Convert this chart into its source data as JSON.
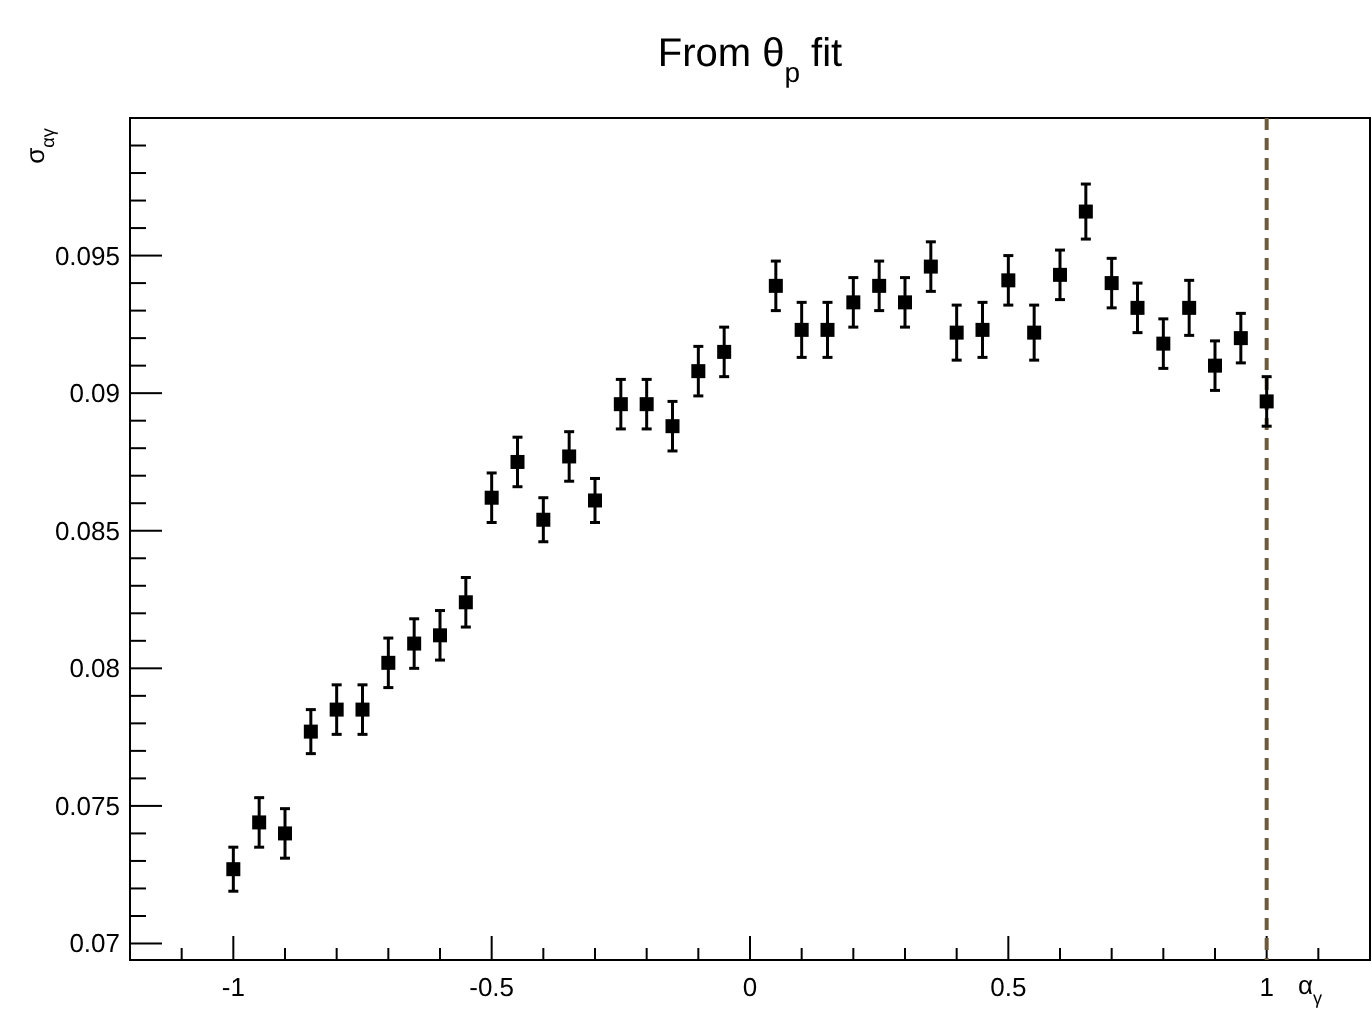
{
  "chart_data": {
    "type": "scatter",
    "title": "From θ$_{p}$ fit",
    "xlabel": "α$_{γ}$",
    "ylabel": "σ$_{αγ}$",
    "x": [
      -1,
      -0.95,
      -0.9,
      -0.85,
      -0.8,
      -0.75,
      -0.7,
      -0.65,
      -0.6,
      -0.55,
      -0.5,
      -0.45,
      -0.4,
      -0.35,
      -0.3,
      -0.25,
      -0.2,
      -0.15,
      -0.1,
      -0.05,
      0.05,
      0.1,
      0.15,
      0.2,
      0.25,
      0.3,
      0.35,
      0.4,
      0.45,
      0.5,
      0.55,
      0.6,
      0.65,
      0.7,
      0.75,
      0.8,
      0.85,
      0.9,
      0.95,
      1
    ],
    "series": [
      {
        "color": "#000000",
        "values": [
          0.0727,
          0.0744,
          0.074,
          0.0777,
          0.0785,
          0.0785,
          0.0802,
          0.0809,
          0.0812,
          0.0824,
          0.0862,
          0.0875,
          0.0854,
          0.0877,
          0.0861,
          0.0896,
          0.0896,
          0.0888,
          0.0908,
          0.0915,
          0.0939,
          0.0923,
          0.0923,
          0.0933,
          0.0939,
          0.0933,
          0.0946,
          0.0922,
          0.0923,
          0.0941,
          0.0922,
          0.0943,
          0.0966,
          0.094,
          0.0931,
          0.0918,
          0.0931,
          0.091,
          0.092,
          0.0897
        ],
        "errors": [
          0.0008,
          0.0009,
          0.0009,
          0.0008,
          0.0009,
          0.0009,
          0.0009,
          0.0009,
          0.0009,
          0.0009,
          0.0009,
          0.0009,
          0.0008,
          0.0009,
          0.0008,
          0.0009,
          0.0009,
          0.0009,
          0.0009,
          0.0009,
          0.0009,
          0.001,
          0.001,
          0.0009,
          0.0009,
          0.0009,
          0.0009,
          0.001,
          0.001,
          0.0009,
          0.001,
          0.0009,
          0.001,
          0.0009,
          0.0009,
          0.0009,
          0.001,
          0.0009,
          0.0009,
          0.0009
        ]
      }
    ],
    "marker": "square",
    "grid": false,
    "xlim": [
      -1.2,
      1.2
    ],
    "ylim": [
      0.0694,
      0.1
    ],
    "xticks": [
      {
        "value": -1.2,
        "label": null
      },
      {
        "value": -1.1,
        "label": null
      },
      -1,
      {
        "value": -0.9,
        "label": null
      },
      {
        "value": -0.8,
        "label": null
      },
      {
        "value": -0.7,
        "label": null
      },
      {
        "value": -0.6,
        "label": null
      },
      -0.5,
      {
        "value": -0.4,
        "label": null
      },
      {
        "value": -0.3,
        "label": null
      },
      {
        "value": -0.2,
        "label": null
      },
      {
        "value": -0.1,
        "label": null
      },
      0,
      {
        "value": 0.1,
        "label": null
      },
      {
        "value": 0.2,
        "label": null
      },
      {
        "value": 0.3,
        "label": null
      },
      {
        "value": 0.4,
        "label": null
      },
      0.5,
      {
        "value": 0.6,
        "label": null
      },
      {
        "value": 0.7,
        "label": null
      },
      {
        "value": 0.8,
        "label": null
      },
      {
        "value": 0.9,
        "label": null
      },
      1,
      {
        "value": 1.1,
        "label": null
      }
    ],
    "yticks": [
      0.07,
      {
        "value": 0.071,
        "label": null
      },
      {
        "value": 0.072,
        "label": null
      },
      {
        "value": 0.073,
        "label": null
      },
      {
        "value": 0.074,
        "label": null
      },
      0.075,
      {
        "value": 0.076,
        "label": null
      },
      {
        "value": 0.077,
        "label": null
      },
      {
        "value": 0.078,
        "label": null
      },
      {
        "value": 0.079,
        "label": null
      },
      0.08,
      {
        "value": 0.081,
        "label": null
      },
      {
        "value": 0.082,
        "label": null
      },
      {
        "value": 0.083,
        "label": null
      },
      {
        "value": 0.084,
        "label": null
      },
      0.085,
      {
        "value": 0.086,
        "label": null
      },
      {
        "value": 0.087,
        "label": null
      },
      {
        "value": 0.088,
        "label": null
      },
      {
        "value": 0.089,
        "label": null
      },
      0.09,
      {
        "value": 0.091,
        "label": null
      },
      {
        "value": 0.092,
        "label": null
      },
      {
        "value": 0.093,
        "label": null
      },
      {
        "value": 0.094,
        "label": null
      },
      0.095,
      {
        "value": 0.096,
        "label": null
      },
      {
        "value": 0.097,
        "label": null
      },
      {
        "value": 0.098,
        "label": null
      },
      {
        "value": 0.099,
        "label": null
      }
    ],
    "ref_lines": [
      {
        "axis": "x",
        "value": 1,
        "color": "#6b5a3c",
        "line_style": "dashed"
      }
    ]
  }
}
